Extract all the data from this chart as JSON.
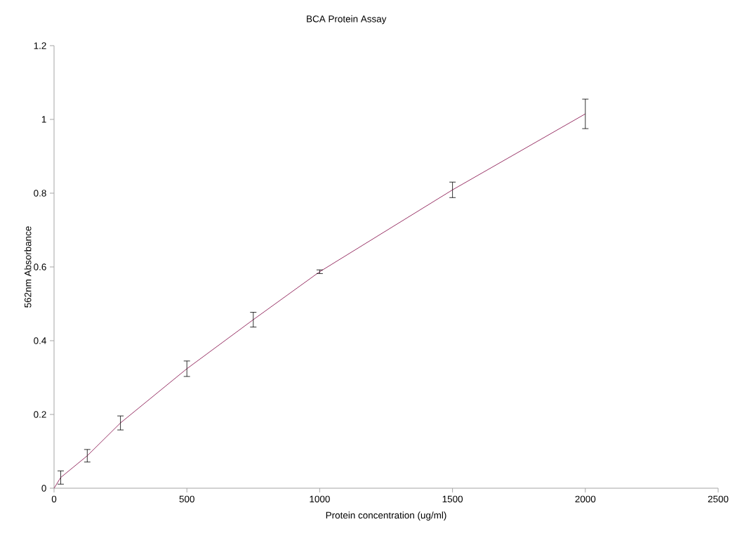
{
  "chart_data": {
    "type": "line",
    "title": "BCA Protein Assay",
    "xlabel": "Protein concentration (ug/ml)",
    "ylabel": "562nm Absorbance",
    "x": [
      0,
      25,
      125,
      250,
      500,
      750,
      1000,
      1500,
      2000
    ],
    "series": [
      {
        "color": "#993366",
        "values": [
          0,
          0.029,
          0.088,
          0.177,
          0.324,
          0.457,
          0.587,
          0.809,
          1.015
        ],
        "errors": [
          null,
          0.018,
          0.017,
          0.019,
          0.021,
          0.02,
          0.005,
          0.021,
          0.04
        ]
      }
    ],
    "xlim": [
      0,
      2500
    ],
    "xticks": [
      0,
      500,
      1000,
      1500,
      2000,
      2500
    ],
    "ylim": [
      0,
      1.2
    ],
    "yticks": [
      0,
      0.2,
      0.4,
      0.6,
      0.8,
      1,
      1.2
    ]
  }
}
